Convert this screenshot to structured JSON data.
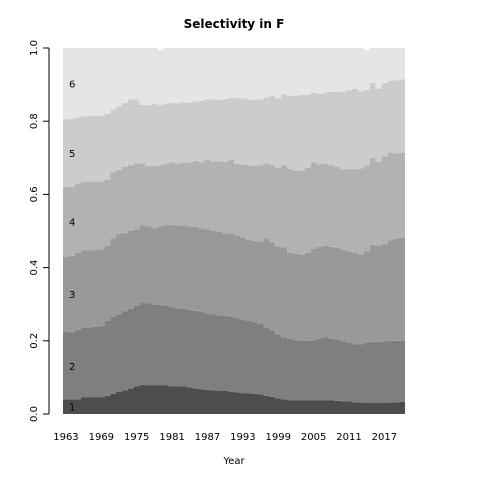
{
  "chart_data": {
    "type": "area",
    "stacking": "cumulative",
    "title": "Selectivity in F",
    "xlabel": "Year",
    "ylabel": "",
    "x_start": 1963,
    "x_end": 2021,
    "xlim": [
      1963,
      2021
    ],
    "ylim": [
      0,
      1
    ],
    "x_ticks": [
      "1963",
      "1969",
      "1975",
      "1981",
      "1987",
      "1993",
      "1999",
      "2005",
      "2011",
      "2017"
    ],
    "y_ticks": [
      "0.0",
      "0.2",
      "0.4",
      "0.6",
      "0.8",
      "1.0"
    ],
    "grid": false,
    "colors": [
      "#4d4d4d",
      "#7f7f7f",
      "#999999",
      "#b2b2b2",
      "#cccccc",
      "#e5e5e5"
    ],
    "series": [
      {
        "name": "1",
        "values": [
          0.04,
          0.04,
          0.04,
          0.045,
          0.045,
          0.045,
          0.045,
          0.05,
          0.055,
          0.06,
          0.065,
          0.07,
          0.075,
          0.08,
          0.078,
          0.078,
          0.078,
          0.078,
          0.076,
          0.075,
          0.075,
          0.073,
          0.07,
          0.068,
          0.066,
          0.065,
          0.064,
          0.063,
          0.061,
          0.059,
          0.057,
          0.056,
          0.055,
          0.054,
          0.05,
          0.047,
          0.043,
          0.04,
          0.038,
          0.037,
          0.037,
          0.037,
          0.037,
          0.037,
          0.037,
          0.037,
          0.036,
          0.035,
          0.034,
          0.032,
          0.031,
          0.03,
          0.03,
          0.03,
          0.03,
          0.031,
          0.032,
          0.033
        ]
      },
      {
        "name": "2",
        "values": [
          0.185,
          0.183,
          0.19,
          0.19,
          0.19,
          0.193,
          0.195,
          0.205,
          0.21,
          0.212,
          0.215,
          0.218,
          0.22,
          0.225,
          0.225,
          0.222,
          0.22,
          0.218,
          0.216,
          0.214,
          0.213,
          0.212,
          0.212,
          0.211,
          0.209,
          0.207,
          0.206,
          0.205,
          0.204,
          0.202,
          0.2,
          0.198,
          0.196,
          0.194,
          0.185,
          0.182,
          0.175,
          0.17,
          0.167,
          0.165,
          0.163,
          0.163,
          0.165,
          0.17,
          0.172,
          0.17,
          0.168,
          0.164,
          0.16,
          0.158,
          0.16,
          0.165,
          0.167,
          0.167,
          0.168,
          0.169,
          0.168,
          0.167
        ]
      },
      {
        "name": "3",
        "values": [
          0.205,
          0.209,
          0.21,
          0.212,
          0.212,
          0.21,
          0.21,
          0.205,
          0.215,
          0.22,
          0.215,
          0.212,
          0.21,
          0.21,
          0.21,
          0.208,
          0.215,
          0.22,
          0.225,
          0.225,
          0.228,
          0.228,
          0.23,
          0.229,
          0.23,
          0.228,
          0.228,
          0.226,
          0.229,
          0.227,
          0.225,
          0.222,
          0.222,
          0.222,
          0.245,
          0.24,
          0.24,
          0.245,
          0.235,
          0.235,
          0.235,
          0.24,
          0.25,
          0.25,
          0.25,
          0.25,
          0.25,
          0.25,
          0.25,
          0.25,
          0.245,
          0.25,
          0.265,
          0.262,
          0.266,
          0.275,
          0.28,
          0.282
        ]
      },
      {
        "name": "4",
        "values": [
          0.19,
          0.189,
          0.19,
          0.187,
          0.188,
          0.188,
          0.185,
          0.18,
          0.18,
          0.175,
          0.18,
          0.18,
          0.18,
          0.17,
          0.165,
          0.17,
          0.167,
          0.169,
          0.17,
          0.17,
          0.172,
          0.175,
          0.18,
          0.18,
          0.189,
          0.19,
          0.192,
          0.195,
          0.2,
          0.195,
          0.2,
          0.204,
          0.205,
          0.21,
          0.205,
          0.21,
          0.215,
          0.224,
          0.23,
          0.228,
          0.23,
          0.232,
          0.235,
          0.225,
          0.225,
          0.223,
          0.222,
          0.22,
          0.225,
          0.228,
          0.235,
          0.235,
          0.238,
          0.23,
          0.24,
          0.24,
          0.232,
          0.232
        ]
      },
      {
        "name": "5",
        "values": [
          0.185,
          0.185,
          0.18,
          0.18,
          0.18,
          0.18,
          0.18,
          0.18,
          0.172,
          0.173,
          0.175,
          0.18,
          0.175,
          0.16,
          0.165,
          0.17,
          0.165,
          0.163,
          0.163,
          0.165,
          0.164,
          0.162,
          0.162,
          0.168,
          0.166,
          0.17,
          0.168,
          0.172,
          0.17,
          0.18,
          0.18,
          0.18,
          0.18,
          0.18,
          0.18,
          0.19,
          0.19,
          0.194,
          0.2,
          0.205,
          0.207,
          0.2,
          0.19,
          0.193,
          0.195,
          0.2,
          0.206,
          0.211,
          0.215,
          0.22,
          0.21,
          0.205,
          0.205,
          0.2,
          0.2,
          0.195,
          0.2,
          0.2
        ]
      },
      {
        "name": "6",
        "values": [
          0.195,
          0.194,
          0.19,
          0.186,
          0.185,
          0.184,
          0.185,
          0.18,
          0.168,
          0.16,
          0.15,
          0.14,
          0.14,
          0.155,
          0.157,
          0.152,
          0.15,
          0.152,
          0.15,
          0.151,
          0.148,
          0.15,
          0.146,
          0.144,
          0.14,
          0.14,
          0.142,
          0.139,
          0.136,
          0.137,
          0.138,
          0.14,
          0.142,
          0.14,
          0.135,
          0.131,
          0.137,
          0.127,
          0.13,
          0.13,
          0.128,
          0.128,
          0.123,
          0.125,
          0.121,
          0.12,
          0.118,
          0.12,
          0.116,
          0.112,
          0.119,
          0.11,
          0.095,
          0.111,
          0.096,
          0.09,
          0.088,
          0.086
        ]
      }
    ]
  }
}
